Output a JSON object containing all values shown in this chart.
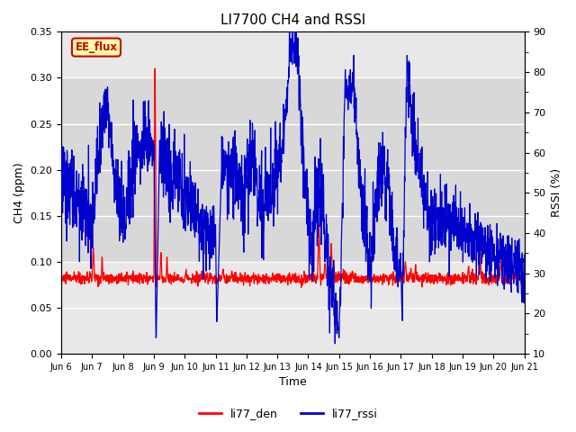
{
  "title": "LI7700 CH4 and RSSI",
  "xlabel": "Time",
  "ylabel_left": "CH4 (ppm)",
  "ylabel_right": "RSSI (%)",
  "ylim_left": [
    0.0,
    0.35
  ],
  "ylim_right": [
    10,
    90
  ],
  "yticks_left": [
    0.0,
    0.05,
    0.1,
    0.15,
    0.2,
    0.25,
    0.3,
    0.35
  ],
  "yticks_right": [
    10,
    20,
    30,
    40,
    50,
    60,
    70,
    80,
    90
  ],
  "xtick_labels": [
    "Jun 6",
    "Jun 7",
    "Jun 8",
    "Jun 9",
    "Jun 10",
    "Jun 11",
    "Jun 12",
    "Jun 13",
    "Jun 14",
    "Jun 15",
    "Jun 16",
    "Jun 17",
    "Jun 18",
    "Jun 19",
    "Jun 20",
    "Jun 21"
  ],
  "color_ch4": "#ff0000",
  "color_rssi": "#0000cc",
  "legend_labels": [
    "li77_den",
    "li77_rssi"
  ],
  "span_label": "EE_flux",
  "span_facecolor": "#ffffaa",
  "span_edgecolor": "#cc0000",
  "plot_bg": "#e8e8e8",
  "grid_color": "#ffffff",
  "band_color": "#d8d8d8"
}
